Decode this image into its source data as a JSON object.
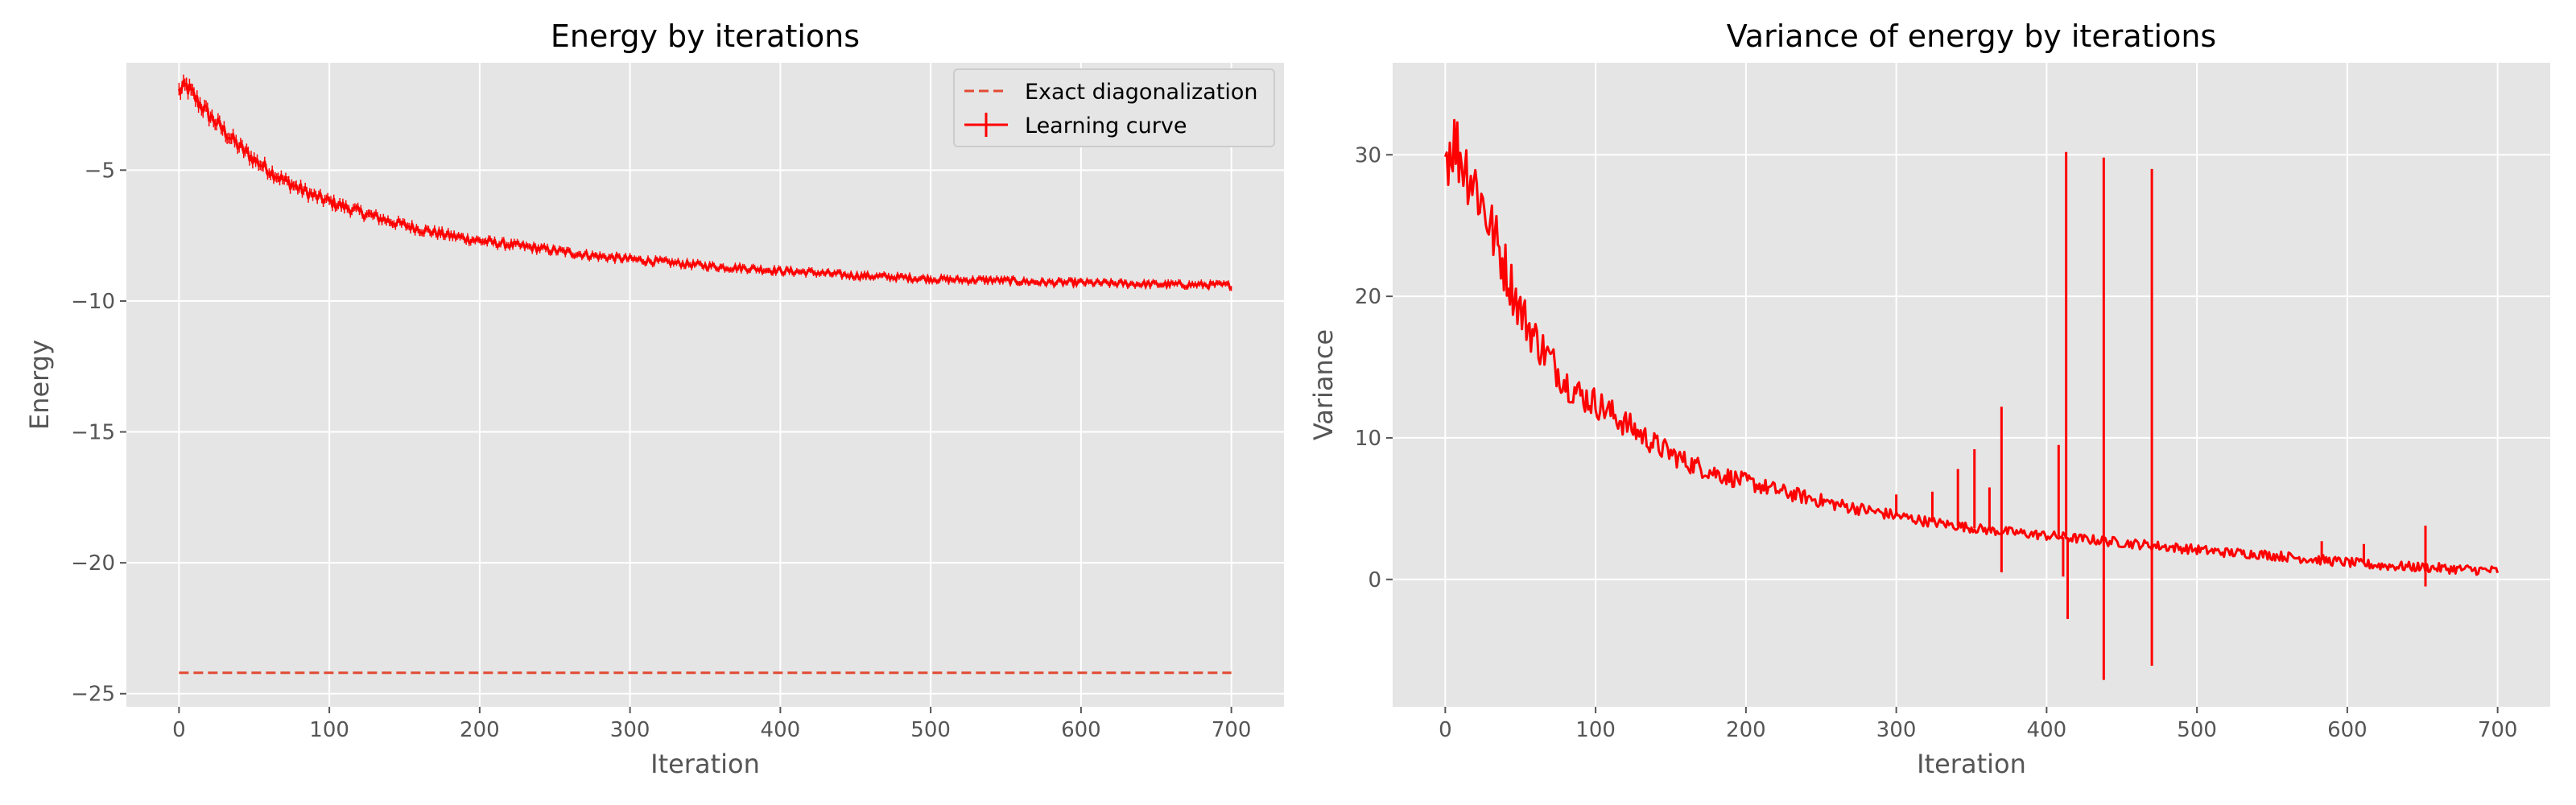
{
  "figure": {
    "background": "#ffffff",
    "panel_background": "#e5e5e5",
    "grid_color": "#ffffff",
    "line_color": "#ff0000",
    "exact_line_color": "#e24a33"
  },
  "chart_data": [
    {
      "type": "line",
      "title": "Energy by iterations",
      "xlabel": "Iteration",
      "ylabel": "Energy",
      "xlim": [
        -35,
        735
      ],
      "ylim": [
        -25.5,
        -0.9
      ],
      "xticks": [
        0,
        100,
        200,
        300,
        400,
        500,
        600,
        700
      ],
      "xtick_labels": [
        "0",
        "100",
        "200",
        "300",
        "400",
        "500",
        "600",
        "700"
      ],
      "yticks": [
        -5,
        -10,
        -15,
        -20,
        -25
      ],
      "ytick_labels": [
        "−5",
        "−10",
        "−15",
        "−20",
        "−25"
      ],
      "grid": true,
      "legend": {
        "placement": "top-right",
        "entries": [
          {
            "label": "Exact diagonalization",
            "style": "dashed"
          },
          {
            "label": "Learning curve",
            "style": "errorbar"
          }
        ]
      },
      "series": [
        {
          "name": "Exact diagonalization",
          "style": "dashed",
          "x": [
            0,
            700
          ],
          "y": [
            -24.2,
            -24.2
          ]
        },
        {
          "name": "Learning curve",
          "style": "errorbar",
          "x": [
            0,
            5,
            10,
            20,
            30,
            40,
            50,
            60,
            70,
            80,
            90,
            100,
            120,
            140,
            160,
            180,
            200,
            220,
            240,
            260,
            280,
            300,
            320,
            340,
            360,
            380,
            400,
            420,
            440,
            460,
            480,
            500,
            520,
            540,
            560,
            580,
            600,
            620,
            640,
            660,
            680,
            700
          ],
          "y": [
            -2.0,
            -1.8,
            -2.2,
            -2.9,
            -3.5,
            -4.1,
            -4.6,
            -5.0,
            -5.4,
            -5.7,
            -6.0,
            -6.2,
            -6.6,
            -6.95,
            -7.25,
            -7.5,
            -7.7,
            -7.85,
            -8.0,
            -8.15,
            -8.3,
            -8.4,
            -8.5,
            -8.6,
            -8.7,
            -8.75,
            -8.85,
            -8.9,
            -9.0,
            -9.05,
            -9.1,
            -9.15,
            -9.2,
            -9.2,
            -9.25,
            -9.3,
            -9.3,
            -9.33,
            -9.35,
            -9.37,
            -9.38,
            -9.4
          ]
        }
      ]
    },
    {
      "type": "line",
      "title": "Variance of energy by iterations",
      "xlabel": "Iteration",
      "ylabel": "Variance",
      "xlim": [
        -35,
        735
      ],
      "ylim": [
        -9,
        36.5
      ],
      "xticks": [
        0,
        100,
        200,
        300,
        400,
        500,
        600,
        700
      ],
      "xtick_labels": [
        "0",
        "100",
        "200",
        "300",
        "400",
        "500",
        "600",
        "700"
      ],
      "yticks": [
        30,
        20,
        10,
        0
      ],
      "ytick_labels": [
        "30",
        "20",
        "10",
        "0"
      ],
      "grid": true,
      "series": [
        {
          "x": [
            0,
            5,
            10,
            20,
            30,
            40,
            50,
            60,
            70,
            80,
            90,
            100,
            120,
            140,
            160,
            180,
            200,
            220,
            240,
            260,
            280,
            300,
            320,
            340,
            360,
            380,
            400,
            420,
            440,
            460,
            480,
            500,
            520,
            540,
            560,
            580,
            600,
            620,
            640,
            660,
            680,
            700
          ],
          "y": [
            30,
            31,
            30,
            28,
            25,
            22,
            19,
            17,
            15.5,
            14,
            13,
            12.5,
            11,
            9.5,
            8.3,
            7.5,
            6.9,
            6.3,
            5.8,
            5.3,
            4.9,
            4.5,
            4.1,
            3.8,
            3.5,
            3.3,
            3.1,
            2.9,
            2.7,
            2.5,
            2.3,
            2.1,
            1.9,
            1.8,
            1.6,
            1.4,
            1.2,
            1.0,
            0.9,
            0.8,
            0.7,
            0.6
          ],
          "spikes": [
            {
              "x": 300,
              "y": 6.0
            },
            {
              "x": 324,
              "y": 6.2
            },
            {
              "x": 341,
              "y": 7.8
            },
            {
              "x": 352,
              "y": 9.2
            },
            {
              "x": 362,
              "y": 6.5
            },
            {
              "x": 370,
              "y": 12.2
            },
            {
              "x": 370,
              "y": 0.5
            },
            {
              "x": 408,
              "y": 9.5
            },
            {
              "x": 411,
              "y": 0.2
            },
            {
              "x": 413,
              "y": 30.2
            },
            {
              "x": 414,
              "y": -2.8
            },
            {
              "x": 438,
              "y": 29.8
            },
            {
              "x": 438,
              "y": -7.1
            },
            {
              "x": 470,
              "y": 29.0
            },
            {
              "x": 470,
              "y": -6.1
            },
            {
              "x": 583,
              "y": 2.7
            },
            {
              "x": 611,
              "y": 2.5
            },
            {
              "x": 652,
              "y": 3.8
            },
            {
              "x": 652,
              "y": -0.5
            }
          ]
        }
      ]
    }
  ]
}
